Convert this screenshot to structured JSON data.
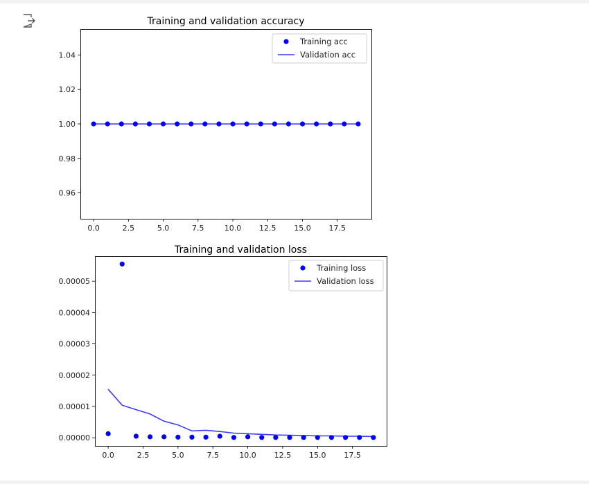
{
  "icons": {
    "output": "output-arrow-icon"
  },
  "chart_data": [
    {
      "type": "line",
      "title": "Training and validation accuracy",
      "xlabel": "",
      "ylabel": "",
      "xlim": [
        -0.95,
        19.95
      ],
      "ylim": [
        0.945,
        1.055
      ],
      "xticks": [
        0.0,
        2.5,
        5.0,
        7.5,
        10.0,
        12.5,
        15.0,
        17.5
      ],
      "xtick_labels": [
        "0.0",
        "2.5",
        "5.0",
        "7.5",
        "10.0",
        "12.5",
        "15.0",
        "17.5"
      ],
      "yticks": [
        0.96,
        0.98,
        1.0,
        1.02,
        1.04
      ],
      "ytick_labels": [
        "0.96",
        "0.98",
        "1.00",
        "1.02",
        "1.04"
      ],
      "grid": false,
      "legend_position": "top-right",
      "x": [
        0,
        1,
        2,
        3,
        4,
        5,
        6,
        7,
        8,
        9,
        10,
        11,
        12,
        13,
        14,
        15,
        16,
        17,
        18,
        19
      ],
      "series": [
        {
          "name": "Training acc",
          "style": "scatter",
          "color": "#0000ff",
          "values": [
            1,
            1,
            1,
            1,
            1,
            1,
            1,
            1,
            1,
            1,
            1,
            1,
            1,
            1,
            1,
            1,
            1,
            1,
            1,
            1
          ]
        },
        {
          "name": "Validation acc",
          "style": "line",
          "color": "#3a3aff",
          "values": [
            1,
            1,
            1,
            1,
            1,
            1,
            1,
            1,
            1,
            1,
            1,
            1,
            1,
            1,
            1,
            1,
            1,
            1,
            1,
            1
          ]
        }
      ]
    },
    {
      "type": "line",
      "title": "Training and validation loss",
      "xlabel": "",
      "ylabel": "",
      "xlim": [
        -0.95,
        19.95
      ],
      "ylim": [
        -2.6e-06,
        5.8e-05
      ],
      "xticks": [
        0.0,
        2.5,
        5.0,
        7.5,
        10.0,
        12.5,
        15.0,
        17.5
      ],
      "xtick_labels": [
        "0.0",
        "2.5",
        "5.0",
        "7.5",
        "10.0",
        "12.5",
        "15.0",
        "17.5"
      ],
      "yticks": [
        0,
        1e-05,
        2e-05,
        3e-05,
        4e-05,
        5e-05
      ],
      "ytick_labels": [
        "0.00000",
        "0.00001",
        "0.00002",
        "0.00003",
        "0.00004",
        "0.00005"
      ],
      "grid": false,
      "legend_position": "top-right",
      "x": [
        0,
        1,
        2,
        3,
        4,
        5,
        6,
        7,
        8,
        9,
        10,
        11,
        12,
        13,
        14,
        15,
        16,
        17,
        18,
        19
      ],
      "series": [
        {
          "name": "Training loss",
          "style": "scatter",
          "color": "#0000ff",
          "values": [
            1.3e-06,
            5.55e-05,
            5e-07,
            3e-07,
            3e-07,
            2e-07,
            2e-07,
            2e-07,
            5e-07,
            1e-07,
            3e-07,
            1e-07,
            1e-07,
            1e-07,
            1e-07,
            1e-07,
            1e-07,
            1e-07,
            1e-07,
            1e-07
          ]
        },
        {
          "name": "Validation loss",
          "style": "line",
          "color": "#3a3aff",
          "values": [
            1.55e-05,
            1.04e-05,
            9e-06,
            7.6e-06,
            5.3e-06,
            4.1e-06,
            2.2e-06,
            2.4e-06,
            2e-06,
            1.5e-06,
            1.3e-06,
            1.1e-06,
            9e-07,
            8e-07,
            7e-07,
            6e-07,
            6e-07,
            5e-07,
            5e-07,
            4e-07
          ]
        }
      ]
    }
  ]
}
